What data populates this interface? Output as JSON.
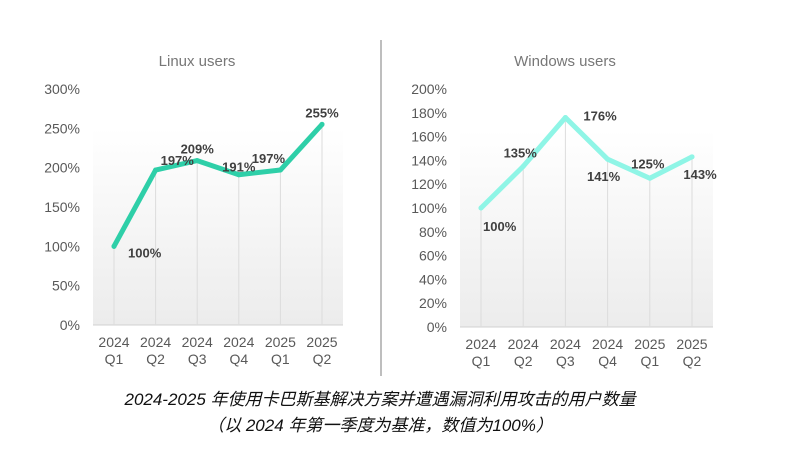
{
  "chart_data": [
    {
      "type": "line",
      "title": "Linux users",
      "categories": [
        [
          "2024",
          "Q1"
        ],
        [
          "2024",
          "Q2"
        ],
        [
          "2024",
          "Q3"
        ],
        [
          "2024",
          "Q4"
        ],
        [
          "2025",
          "Q1"
        ],
        [
          "2025",
          "Q2"
        ]
      ],
      "values": [
        100,
        197,
        209,
        191,
        197,
        255
      ],
      "data_labels": [
        "100%",
        "197%",
        "209%",
        "191%",
        "197%",
        "255%"
      ],
      "yticks": [
        "0%",
        "50%",
        "100%",
        "150%",
        "200%",
        "250%",
        "300%"
      ],
      "ylim": [
        0,
        300
      ],
      "color": "#2ecfa8",
      "grid": "vertical"
    },
    {
      "type": "line",
      "title": "Windows users",
      "categories": [
        [
          "2024",
          "Q1"
        ],
        [
          "2024",
          "Q2"
        ],
        [
          "2024",
          "Q3"
        ],
        [
          "2024",
          "Q4"
        ],
        [
          "2025",
          "Q1"
        ],
        [
          "2025",
          "Q2"
        ]
      ],
      "values": [
        100,
        135,
        176,
        141,
        125,
        143
      ],
      "data_labels": [
        "100%",
        "135%",
        "176%",
        "141%",
        "125%",
        "143%"
      ],
      "yticks": [
        "0%",
        "20%",
        "40%",
        "60%",
        "80%",
        "100%",
        "120%",
        "140%",
        "160%",
        "180%",
        "200%"
      ],
      "ylim": [
        0,
        200
      ],
      "color": "#8ff5e6",
      "grid": "vertical"
    }
  ],
  "caption": {
    "line1": "2024-2025 年使用卡巴斯基解决方案并遭遇漏洞利用攻击的用户数量",
    "line2": "（以 2024 年第一季度为基准，数值为100%）"
  }
}
